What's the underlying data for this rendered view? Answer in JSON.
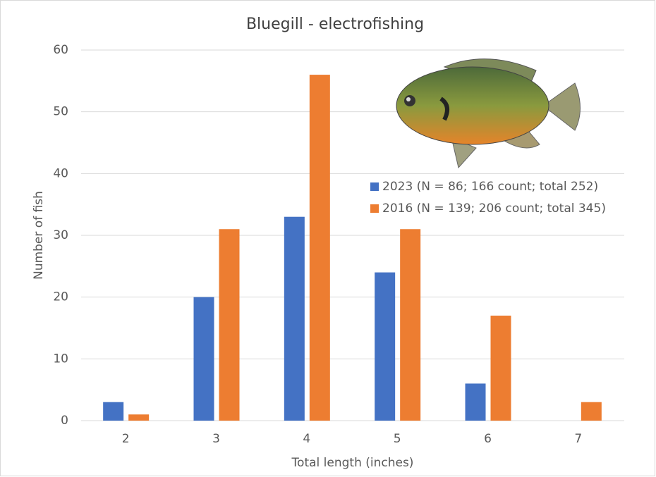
{
  "chart_data": {
    "type": "bar",
    "title": "Bluegill - electrofishing",
    "x_label": "Total length (inches)",
    "y_label": "Number of fish",
    "categories": [
      "2",
      "3",
      "4",
      "5",
      "6",
      "7"
    ],
    "series": [
      {
        "name": "2023 (N = 86; 166 count; total 252)",
        "color": "#4472c4",
        "values": [
          3,
          20,
          33,
          24,
          6,
          0
        ]
      },
      {
        "name": "2016 (N = 139; 206 count; total 345)",
        "color": "#ed7d31",
        "values": [
          1,
          31,
          56,
          31,
          17,
          3
        ]
      }
    ],
    "ylim": [
      0,
      60
    ],
    "yticks": [
      0,
      10,
      20,
      30,
      40,
      50,
      60
    ],
    "grid": true
  }
}
